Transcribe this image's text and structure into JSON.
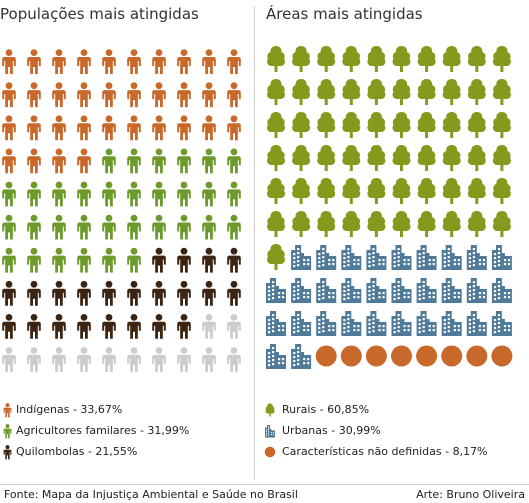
{
  "chart_data": [
    {
      "type": "pictogram",
      "title": "Populações mais atingidas",
      "grid": {
        "rows": 10,
        "columns": 10
      },
      "icon": "person-icon",
      "series": [
        {
          "name": "Indígenas - 33,67%",
          "value": 33.67,
          "icons": 34,
          "color": "#c8682a"
        },
        {
          "name": "Agricultores familares - 31,99%",
          "value": 31.99,
          "icons": 32,
          "color": "#6d9a2c"
        },
        {
          "name": "Quilombolas - 21,55%",
          "value": 21.55,
          "icons": 22,
          "color": "#3b2412"
        }
      ],
      "remainder": {
        "icons": 12,
        "color": "#cccccc"
      }
    },
    {
      "type": "pictogram",
      "title": "Áreas mais atingidas",
      "grid": {
        "rows": 10,
        "columns": 10
      },
      "series": [
        {
          "name": "Rurais - 60,85%",
          "value": 60.85,
          "icons": 61,
          "color": "#849a1c",
          "icon": "tree-icon"
        },
        {
          "name": "Urbanas - 30,99%",
          "value": 30.99,
          "icons": 31,
          "color": "#4f7a99",
          "icon": "building-icon"
        },
        {
          "name": "Características não definidas - 8,17%",
          "value": 8.17,
          "icons": 8,
          "color": "#c8682a",
          "icon": "circle-icon"
        }
      ]
    }
  ],
  "footer": {
    "source": "Fonte: Mapa da Injustiça Ambiental e Saúde no Brasil",
    "credit": "Arte: Bruno Oliveira"
  }
}
